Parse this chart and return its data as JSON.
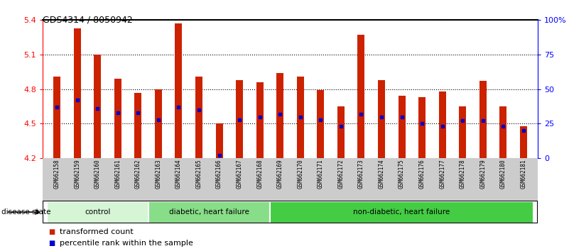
{
  "title": "GDS4314 / 8050942",
  "samples": [
    "GSM662158",
    "GSM662159",
    "GSM662160",
    "GSM662161",
    "GSM662162",
    "GSM662163",
    "GSM662164",
    "GSM662165",
    "GSM662166",
    "GSM662167",
    "GSM662168",
    "GSM662169",
    "GSM662170",
    "GSM662171",
    "GSM662172",
    "GSM662173",
    "GSM662174",
    "GSM662175",
    "GSM662176",
    "GSM662177",
    "GSM662178",
    "GSM662179",
    "GSM662180",
    "GSM662181"
  ],
  "red_values": [
    4.91,
    5.33,
    5.1,
    4.89,
    4.77,
    4.8,
    5.37,
    4.91,
    4.5,
    4.88,
    4.86,
    4.94,
    4.91,
    4.79,
    4.65,
    5.27,
    4.88,
    4.74,
    4.73,
    4.78,
    4.65,
    4.87,
    4.65,
    4.48
  ],
  "blue_percentiles": [
    37,
    42,
    36,
    33,
    33,
    28,
    37,
    35,
    2,
    28,
    30,
    32,
    30,
    28,
    23,
    32,
    30,
    30,
    25,
    23,
    27,
    27,
    23,
    20
  ],
  "groups": [
    {
      "label": "control",
      "start": 0,
      "end": 5
    },
    {
      "label": "diabetic, heart failure",
      "start": 5,
      "end": 11
    },
    {
      "label": "non-diabetic, heart failure",
      "start": 11,
      "end": 24
    }
  ],
  "group_colors": [
    "#d5f5d5",
    "#88dd88",
    "#44cc44"
  ],
  "ymin": 4.2,
  "ymax": 5.4,
  "y2min": 0,
  "y2max": 100,
  "bar_color": "#cc2200",
  "dot_color": "#0000cc",
  "bg_label_color": "#cccccc",
  "legend_red": "transformed count",
  "legend_blue": "percentile rank within the sample",
  "bar_width": 0.35
}
